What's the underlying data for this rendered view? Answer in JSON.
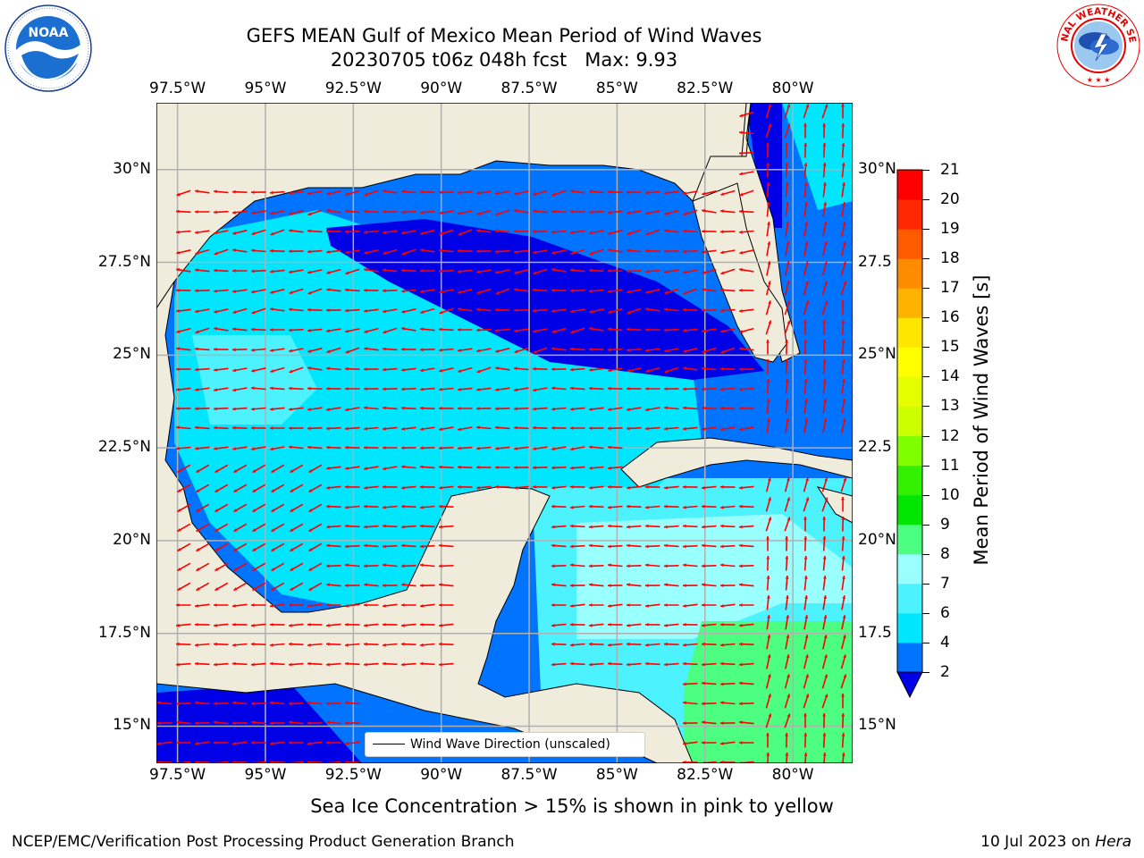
{
  "header": {
    "title_line1": "GEFS MEAN Gulf of Mexico Mean Period of Wind Waves",
    "title_line2": "20230705 t06z 048h fcst   Max: 9.93"
  },
  "logos": {
    "left": "NOAA",
    "left_ring_text": "NATIONAL OCEANIC AND ATMOSPHERIC ADMINISTRATION · U.S. DEPARTMENT OF COMMERCE",
    "right_ring_text": "NATIONAL WEATHER SERVICE"
  },
  "map": {
    "lon_labels": [
      "97.5°W",
      "95°W",
      "92.5°W",
      "90°W",
      "87.5°W",
      "85°W",
      "82.5°W",
      "80°W"
    ],
    "lat_labels_left": [
      "30°N",
      "27.5°N",
      "25°N",
      "22.5°N",
      "20°N",
      "17.5°N",
      "15°N"
    ],
    "lat_labels_right": [
      "30°N",
      "27.5",
      "25°N",
      "22.5",
      "20°N",
      "17.5",
      "15°N"
    ],
    "lon_range": [
      -98.1,
      -78.3
    ],
    "lat_range": [
      14.0,
      31.8
    ],
    "legend_text": "Wind Wave Direction (unscaled)",
    "land_color": "#efecdc",
    "arrow_color": "#ff0000"
  },
  "colorbar": {
    "label": "Mean Period of Wind Waves [s]",
    "ticks": [
      "2",
      "4",
      "6",
      "7",
      "8",
      "9",
      "10",
      "11",
      "12",
      "13",
      "14",
      "15",
      "16",
      "17",
      "18",
      "19",
      "20",
      "21"
    ],
    "colors": [
      "#0000e6",
      "#0073ff",
      "#00e6ff",
      "#4df2ff",
      "#99ffff",
      "#4dff80",
      "#00e600",
      "#33f000",
      "#80ff00",
      "#ccff00",
      "#e6ff00",
      "#ffff00",
      "#ffe600",
      "#ffb300",
      "#ff8c00",
      "#ff5a00",
      "#ff2800",
      "#ff0000"
    ]
  },
  "caption": "Sea Ice Concentration > 15% is shown in pink to yellow",
  "footer": {
    "left": "NCEP/EMC/Verification Post Processing Product Generation Branch",
    "right_date": "10 Jul 2023 on ",
    "right_host": "Hera"
  }
}
